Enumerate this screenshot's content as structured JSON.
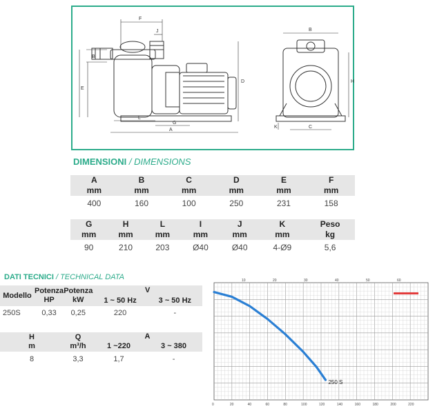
{
  "drawing": {
    "dim_letters": [
      "F",
      "J",
      "B",
      "E",
      "D",
      "L",
      "G",
      "A",
      "B",
      "H",
      "K",
      "C"
    ]
  },
  "dimensions": {
    "title": "DIMENSIONI",
    "subtitle": "/ DIMENSIONS",
    "row1": [
      {
        "code": "A",
        "unit": "mm",
        "value": "400"
      },
      {
        "code": "B",
        "unit": "mm",
        "value": "160"
      },
      {
        "code": "C",
        "unit": "mm",
        "value": "100"
      },
      {
        "code": "D",
        "unit": "mm",
        "value": "250"
      },
      {
        "code": "E",
        "unit": "mm",
        "value": "231"
      },
      {
        "code": "F",
        "unit": "mm",
        "value": "158"
      }
    ],
    "row2": [
      {
        "code": "G",
        "unit": "mm",
        "value": "90"
      },
      {
        "code": "H",
        "unit": "mm",
        "value": "210"
      },
      {
        "code": "L",
        "unit": "mm",
        "value": "203"
      },
      {
        "code": "I",
        "unit": "mm",
        "value": "Ø40"
      },
      {
        "code": "J",
        "unit": "mm",
        "value": "Ø40"
      },
      {
        "code": "K",
        "unit": "mm",
        "value": "4-Ø9"
      },
      {
        "code": "Peso",
        "unit": "kg",
        "value": "5,6"
      }
    ]
  },
  "technical": {
    "title": "DATI TECNICI",
    "subtitle": "/ TECHNICAL DATA",
    "table1": {
      "h_modello": "Modello",
      "h_potenza_hp": "Potenza HP",
      "h_potenza_kw": "Potenza kW",
      "h_v": "V",
      "h_v1": "1 ~ 50 Hz",
      "h_v3": "3 ~  50 Hz",
      "row": {
        "modello": "250S",
        "hp": "0,33",
        "kw": "0,25",
        "v1": "220",
        "v3": "-"
      }
    },
    "table2": {
      "h_h": "H",
      "h_h_unit": "m",
      "h_q": "Q",
      "h_q_unit": "m³/h",
      "h_a": "A",
      "h_a1": "1 ~220",
      "h_a3": "3 ~  380",
      "row": {
        "h": "8",
        "q": "3,3",
        "a1": "1,7",
        "a3": "-"
      }
    }
  },
  "chart_data": {
    "type": "line",
    "title": "",
    "xlabel": "",
    "ylabel": "",
    "top_axis_ticks": [
      "10",
      "20",
      "30",
      "40",
      "50",
      "60"
    ],
    "bottom_axis_ticks": [
      "0",
      "20",
      "40",
      "60",
      "80",
      "100",
      "120",
      "140",
      "160",
      "180",
      "200",
      "220"
    ],
    "series": [
      {
        "name": "250 S",
        "color": "#2a7fd4",
        "x": [
          0,
          20,
          40,
          60,
          80,
          100,
          115,
          125
        ],
        "y": [
          0.92,
          0.88,
          0.8,
          0.69,
          0.56,
          0.41,
          0.28,
          0.17
        ]
      }
    ],
    "xlim": [
      0,
      240
    ],
    "ylim": [
      0,
      1
    ],
    "grid": true
  }
}
